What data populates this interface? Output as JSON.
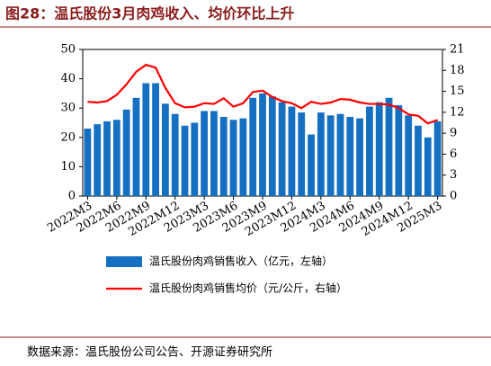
{
  "chart_data": {
    "type": "bar-line",
    "title": "图28：温氏股份3月肉鸡收入、均价环比上升",
    "source": "数据来源：温氏股份公司公告、开源证券研究所",
    "categories": [
      "2022M3",
      null,
      null,
      "2022M6",
      null,
      null,
      "2022M9",
      null,
      null,
      "2022M12",
      null,
      null,
      "2023M3",
      null,
      null,
      "2023M6",
      null,
      null,
      "2023M9",
      null,
      null,
      "2023M12",
      null,
      null,
      "2024M3",
      null,
      null,
      "2024M6",
      null,
      null,
      "2024M9",
      null,
      null,
      "2024M12",
      null,
      null,
      "2025M3"
    ],
    "series": [
      {
        "name": "温氏股份肉鸡销售收入（亿元，左轴）",
        "type": "bar",
        "color": "#1570c2",
        "axis": "y",
        "values": [
          23,
          24.5,
          25.5,
          26,
          29.5,
          33.5,
          38.5,
          38.5,
          31.5,
          28,
          24,
          25,
          29,
          29,
          27,
          26,
          26.5,
          33.5,
          35,
          34,
          32,
          30.5,
          28.5,
          21,
          28.5,
          27.5,
          28,
          27,
          26.5,
          30.5,
          32,
          33.5,
          31,
          27.5,
          24,
          20,
          25.5
        ]
      },
      {
        "name": "温氏股份肉鸡销售均价（元/公斤，右轴）",
        "type": "line",
        "color": "#ff0000",
        "axis": "y2",
        "values": [
          13.5,
          13.4,
          13.6,
          14.5,
          16,
          17.8,
          18.8,
          18.4,
          15.5,
          13.3,
          12.7,
          12.8,
          13.3,
          13.2,
          14,
          12.8,
          13.3,
          14.9,
          15.1,
          14.2,
          13.6,
          13.3,
          12.6,
          13.5,
          13.2,
          13.4,
          13.9,
          13.8,
          13.4,
          13.2,
          13.2,
          13.1,
          12.6,
          11.7,
          11.5,
          10.4,
          10.9
        ]
      }
    ],
    "ylim": [
      0,
      50
    ],
    "yticks": [
      0,
      10,
      20,
      30,
      40,
      50
    ],
    "y2lim": [
      0,
      21
    ],
    "y2ticks": [
      0,
      3,
      6,
      9,
      12,
      15,
      18,
      21
    ]
  }
}
